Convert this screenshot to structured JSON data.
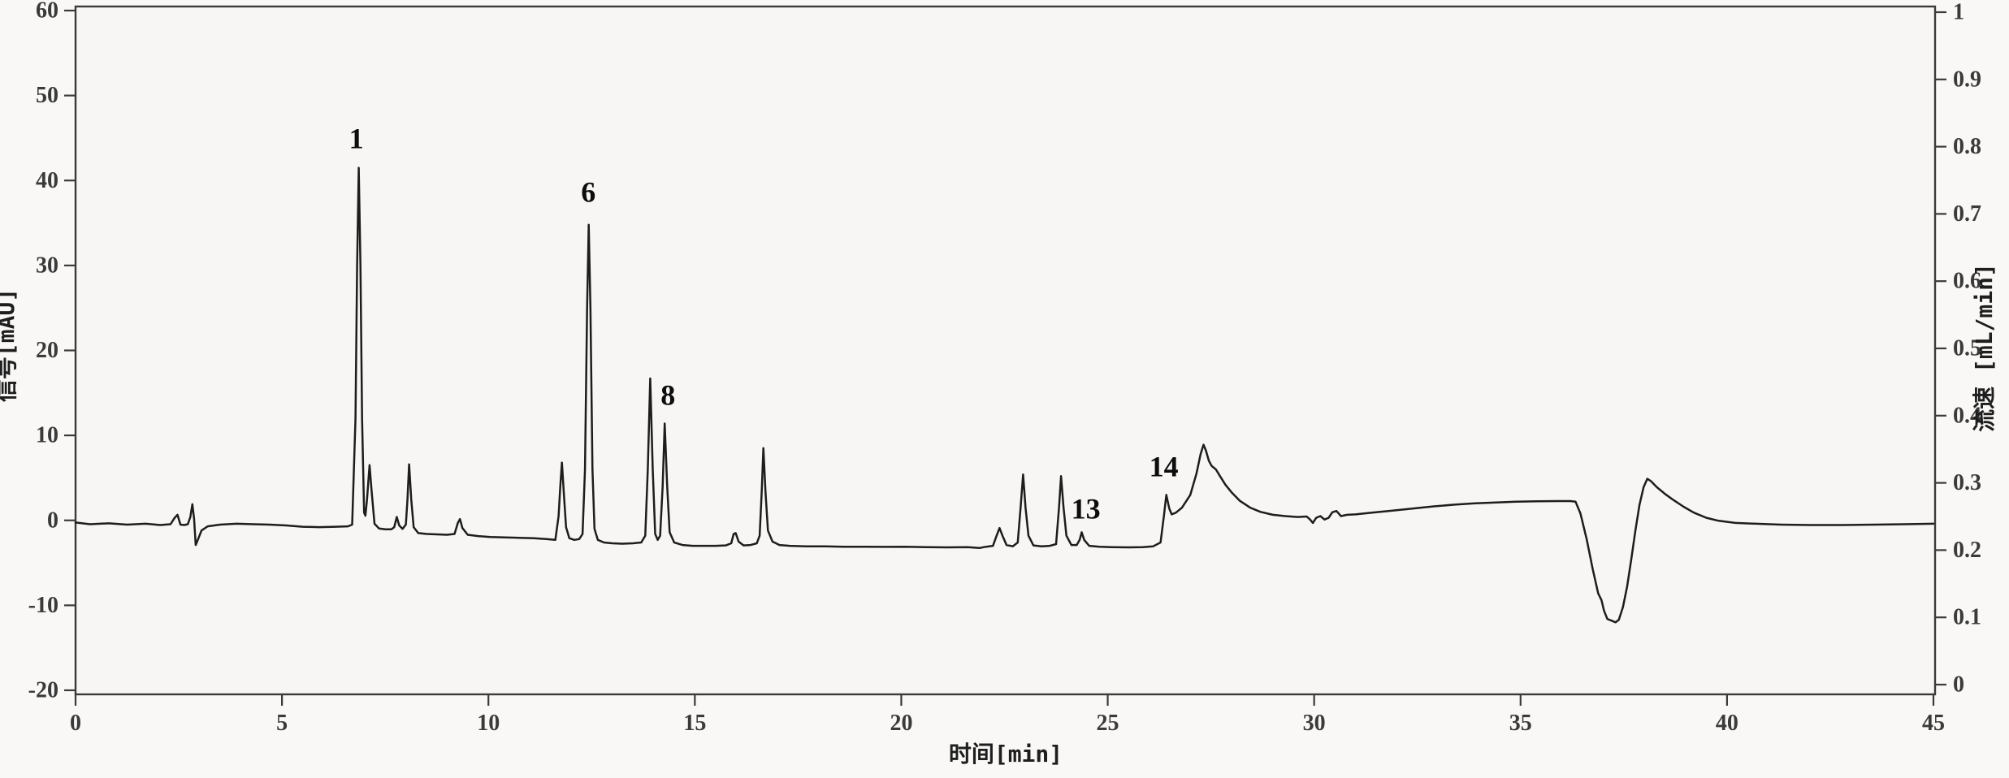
{
  "figure": {
    "description": "HPLC chromatogram with numbered peaks",
    "background_color": "#f9f8f6",
    "plot_background_color": "#f7f6f4",
    "frame_color": "#3a3a3a",
    "trace_color": "#1d1d1d"
  },
  "chart_data": {
    "type": "line",
    "title": "",
    "grid": false,
    "legend": "none",
    "x_axis": {
      "label": "时间[min]",
      "min": 0,
      "max": 45,
      "ticks": [
        {
          "v": 0,
          "label": "0"
        },
        {
          "v": 5,
          "label": "5"
        },
        {
          "v": 10,
          "label": "10"
        },
        {
          "v": 15,
          "label": "15"
        },
        {
          "v": 20,
          "label": "20"
        },
        {
          "v": 25,
          "label": "25"
        },
        {
          "v": 30,
          "label": "30"
        },
        {
          "v": 35,
          "label": "35"
        },
        {
          "v": 40,
          "label": "40"
        },
        {
          "v": 45,
          "label": "45"
        }
      ]
    },
    "y_axis_left": {
      "label": "信号[mAU]",
      "min": -20,
      "max": 60,
      "ticks": [
        {
          "v": 60,
          "label": "60"
        },
        {
          "v": 50,
          "label": "50"
        },
        {
          "v": 40,
          "label": "40"
        },
        {
          "v": 30,
          "label": "30"
        },
        {
          "v": 20,
          "label": "20"
        },
        {
          "v": 10,
          "label": "10"
        },
        {
          "v": 0,
          "label": "0"
        },
        {
          "v": -10,
          "label": "-10"
        },
        {
          "v": -20,
          "label": "-20"
        }
      ]
    },
    "y_axis_right": {
      "label": "流速 [mL/min]",
      "min": 0,
      "max": 1,
      "ticks": [
        {
          "v": 1,
          "label": "1"
        },
        {
          "v": 0.9,
          "label": "0.9"
        },
        {
          "v": 0.8,
          "label": "0.8"
        },
        {
          "v": 0.7,
          "label": "0.7"
        },
        {
          "v": 0.6,
          "label": "0.6"
        },
        {
          "v": 0.5,
          "label": "0.5"
        },
        {
          "v": 0.4,
          "label": "0.4"
        },
        {
          "v": 0.3,
          "label": "0.3"
        },
        {
          "v": 0.2,
          "label": "0.2"
        },
        {
          "v": 0.1,
          "label": "0.1"
        },
        {
          "v": 0,
          "label": "0"
        }
      ]
    },
    "peak_labels": [
      {
        "text": "1",
        "t": 6.8,
        "v": 43.8
      },
      {
        "text": "6",
        "t": 12.42,
        "v": 37.5
      },
      {
        "text": "8",
        "t": 14.35,
        "v": 13.6
      },
      {
        "text": "13",
        "t": 24.47,
        "v": 0.2
      },
      {
        "text": "14",
        "t": 26.36,
        "v": 5.2
      }
    ],
    "series": [
      {
        "name": "signal",
        "units": "mAU",
        "points": [
          [
            0,
            -0.25
          ],
          [
            0.35,
            -0.45
          ],
          [
            0.8,
            -0.35
          ],
          [
            1.25,
            -0.5
          ],
          [
            1.7,
            -0.4
          ],
          [
            2.05,
            -0.55
          ],
          [
            2.3,
            -0.45
          ],
          [
            2.4,
            0.3
          ],
          [
            2.47,
            0.65
          ],
          [
            2.54,
            -0.5
          ],
          [
            2.63,
            -0.55
          ],
          [
            2.72,
            -0.45
          ],
          [
            2.78,
            0.4
          ],
          [
            2.83,
            1.9
          ],
          [
            2.87,
            0.2
          ],
          [
            2.91,
            -2.9
          ],
          [
            2.97,
            -2.2
          ],
          [
            3.05,
            -1.2
          ],
          [
            3.2,
            -0.7
          ],
          [
            3.5,
            -0.5
          ],
          [
            3.9,
            -0.4
          ],
          [
            4.3,
            -0.45
          ],
          [
            4.7,
            -0.5
          ],
          [
            5.1,
            -0.6
          ],
          [
            5.5,
            -0.75
          ],
          [
            5.9,
            -0.8
          ],
          [
            6.3,
            -0.75
          ],
          [
            6.6,
            -0.7
          ],
          [
            6.7,
            -0.5
          ],
          [
            6.78,
            12
          ],
          [
            6.82,
            30
          ],
          [
            6.86,
            41.5
          ],
          [
            6.9,
            30
          ],
          [
            6.94,
            12
          ],
          [
            6.99,
            0.9
          ],
          [
            7.02,
            0.55
          ],
          [
            7.06,
            2.5
          ],
          [
            7.12,
            6.5
          ],
          [
            7.17,
            3.5
          ],
          [
            7.24,
            -0.4
          ],
          [
            7.35,
            -0.95
          ],
          [
            7.5,
            -1.05
          ],
          [
            7.65,
            -1.05
          ],
          [
            7.72,
            -0.8
          ],
          [
            7.78,
            0.4
          ],
          [
            7.84,
            -0.6
          ],
          [
            7.92,
            -1.0
          ],
          [
            8.0,
            -0.5
          ],
          [
            8.04,
            2.5
          ],
          [
            8.08,
            6.6
          ],
          [
            8.13,
            2.5
          ],
          [
            8.19,
            -0.8
          ],
          [
            8.3,
            -1.5
          ],
          [
            8.5,
            -1.6
          ],
          [
            8.75,
            -1.65
          ],
          [
            9.0,
            -1.7
          ],
          [
            9.18,
            -1.6
          ],
          [
            9.26,
            -0.3
          ],
          [
            9.31,
            0.15
          ],
          [
            9.37,
            -0.9
          ],
          [
            9.5,
            -1.7
          ],
          [
            9.75,
            -1.85
          ],
          [
            10.05,
            -1.95
          ],
          [
            10.4,
            -2.0
          ],
          [
            10.75,
            -2.05
          ],
          [
            11.1,
            -2.1
          ],
          [
            11.4,
            -2.2
          ],
          [
            11.62,
            -2.3
          ],
          [
            11.7,
            0.5
          ],
          [
            11.74,
            4
          ],
          [
            11.78,
            6.8
          ],
          [
            11.83,
            3
          ],
          [
            11.88,
            -0.8
          ],
          [
            11.96,
            -2.1
          ],
          [
            12.08,
            -2.3
          ],
          [
            12.2,
            -2.2
          ],
          [
            12.28,
            -1.6
          ],
          [
            12.34,
            6
          ],
          [
            12.39,
            25
          ],
          [
            12.43,
            34.8
          ],
          [
            12.47,
            25
          ],
          [
            12.52,
            6
          ],
          [
            12.57,
            -1.0
          ],
          [
            12.65,
            -2.3
          ],
          [
            12.8,
            -2.6
          ],
          [
            13.0,
            -2.7
          ],
          [
            13.25,
            -2.75
          ],
          [
            13.5,
            -2.7
          ],
          [
            13.7,
            -2.6
          ],
          [
            13.8,
            -1.8
          ],
          [
            13.86,
            6
          ],
          [
            13.92,
            16.7
          ],
          [
            13.98,
            6
          ],
          [
            14.04,
            -1.6
          ],
          [
            14.1,
            -2.3
          ],
          [
            14.16,
            -1.8
          ],
          [
            14.22,
            4
          ],
          [
            14.27,
            11.4
          ],
          [
            14.33,
            4
          ],
          [
            14.39,
            -1.4
          ],
          [
            14.5,
            -2.6
          ],
          [
            14.7,
            -2.9
          ],
          [
            14.95,
            -3.0
          ],
          [
            15.2,
            -3.0
          ],
          [
            15.5,
            -3.0
          ],
          [
            15.75,
            -2.95
          ],
          [
            15.88,
            -2.7
          ],
          [
            15.94,
            -1.6
          ],
          [
            15.99,
            -1.5
          ],
          [
            16.06,
            -2.5
          ],
          [
            16.18,
            -2.95
          ],
          [
            16.35,
            -2.9
          ],
          [
            16.5,
            -2.7
          ],
          [
            16.57,
            -1.8
          ],
          [
            16.62,
            3.5
          ],
          [
            16.66,
            8.5
          ],
          [
            16.71,
            3.5
          ],
          [
            16.77,
            -1.2
          ],
          [
            16.88,
            -2.5
          ],
          [
            17.05,
            -2.9
          ],
          [
            17.3,
            -3.0
          ],
          [
            17.7,
            -3.05
          ],
          [
            18.1,
            -3.05
          ],
          [
            18.6,
            -3.1
          ],
          [
            19.1,
            -3.1
          ],
          [
            19.6,
            -3.12
          ],
          [
            20.1,
            -3.1
          ],
          [
            20.6,
            -3.15
          ],
          [
            21.1,
            -3.18
          ],
          [
            21.6,
            -3.15
          ],
          [
            21.9,
            -3.25
          ],
          [
            22.0,
            -3.15
          ],
          [
            22.22,
            -3.0
          ],
          [
            22.31,
            -1.8
          ],
          [
            22.38,
            -0.9
          ],
          [
            22.45,
            -1.8
          ],
          [
            22.55,
            -2.9
          ],
          [
            22.7,
            -3.05
          ],
          [
            22.82,
            -2.6
          ],
          [
            22.89,
            1.5
          ],
          [
            22.95,
            5.4
          ],
          [
            23.01,
            1.5
          ],
          [
            23.08,
            -1.8
          ],
          [
            23.2,
            -2.95
          ],
          [
            23.4,
            -3.05
          ],
          [
            23.6,
            -3.0
          ],
          [
            23.75,
            -2.8
          ],
          [
            23.82,
            1.5
          ],
          [
            23.87,
            5.2
          ],
          [
            23.93,
            1.5
          ],
          [
            24.0,
            -1.8
          ],
          [
            24.12,
            -2.9
          ],
          [
            24.25,
            -2.9
          ],
          [
            24.32,
            -2.3
          ],
          [
            24.37,
            -1.4
          ],
          [
            24.43,
            -2.3
          ],
          [
            24.55,
            -3.0
          ],
          [
            24.8,
            -3.1
          ],
          [
            25.1,
            -3.15
          ],
          [
            25.5,
            -3.18
          ],
          [
            25.85,
            -3.15
          ],
          [
            26.1,
            -3.05
          ],
          [
            26.28,
            -2.6
          ],
          [
            26.36,
            0.5
          ],
          [
            26.42,
            3.0
          ],
          [
            26.49,
            1.4
          ],
          [
            26.55,
            0.7
          ],
          [
            26.65,
            0.9
          ],
          [
            26.8,
            1.5
          ],
          [
            27.0,
            3.0
          ],
          [
            27.15,
            5.5
          ],
          [
            27.25,
            7.8
          ],
          [
            27.32,
            8.9
          ],
          [
            27.38,
            8.2
          ],
          [
            27.45,
            7.0
          ],
          [
            27.52,
            6.4
          ],
          [
            27.62,
            6.0
          ],
          [
            27.72,
            5.2
          ],
          [
            27.85,
            4.2
          ],
          [
            28.0,
            3.3
          ],
          [
            28.2,
            2.3
          ],
          [
            28.45,
            1.5
          ],
          [
            28.7,
            1.0
          ],
          [
            29.0,
            0.65
          ],
          [
            29.3,
            0.5
          ],
          [
            29.6,
            0.4
          ],
          [
            29.82,
            0.45
          ],
          [
            29.9,
            0.1
          ],
          [
            29.97,
            -0.3
          ],
          [
            30.05,
            0.3
          ],
          [
            30.15,
            0.5
          ],
          [
            30.25,
            0.1
          ],
          [
            30.35,
            0.3
          ],
          [
            30.44,
            0.95
          ],
          [
            30.54,
            1.1
          ],
          [
            30.65,
            0.5
          ],
          [
            30.8,
            0.65
          ],
          [
            31.0,
            0.7
          ],
          [
            31.4,
            0.9
          ],
          [
            31.9,
            1.15
          ],
          [
            32.4,
            1.4
          ],
          [
            32.9,
            1.65
          ],
          [
            33.4,
            1.85
          ],
          [
            33.9,
            2.0
          ],
          [
            34.4,
            2.1
          ],
          [
            34.9,
            2.2
          ],
          [
            35.4,
            2.25
          ],
          [
            35.9,
            2.27
          ],
          [
            36.2,
            2.27
          ],
          [
            36.33,
            2.2
          ],
          [
            36.45,
            0.8
          ],
          [
            36.6,
            -2.2
          ],
          [
            36.75,
            -5.8
          ],
          [
            36.88,
            -8.6
          ],
          [
            36.96,
            -9.4
          ],
          [
            37.02,
            -10.6
          ],
          [
            37.1,
            -11.6
          ],
          [
            37.2,
            -11.8
          ],
          [
            37.3,
            -12.0
          ],
          [
            37.38,
            -11.7
          ],
          [
            37.48,
            -10.2
          ],
          [
            37.58,
            -7.8
          ],
          [
            37.68,
            -4.6
          ],
          [
            37.78,
            -1.2
          ],
          [
            37.88,
            1.8
          ],
          [
            37.98,
            3.9
          ],
          [
            38.07,
            4.9
          ],
          [
            38.16,
            4.6
          ],
          [
            38.3,
            3.9
          ],
          [
            38.5,
            3.1
          ],
          [
            38.7,
            2.4
          ],
          [
            38.95,
            1.6
          ],
          [
            39.2,
            0.9
          ],
          [
            39.5,
            0.3
          ],
          [
            39.8,
            -0.05
          ],
          [
            40.2,
            -0.3
          ],
          [
            40.7,
            -0.4
          ],
          [
            41.3,
            -0.5
          ],
          [
            42.0,
            -0.55
          ],
          [
            42.8,
            -0.55
          ],
          [
            43.6,
            -0.5
          ],
          [
            44.3,
            -0.45
          ],
          [
            45,
            -0.4
          ]
        ]
      }
    ]
  }
}
